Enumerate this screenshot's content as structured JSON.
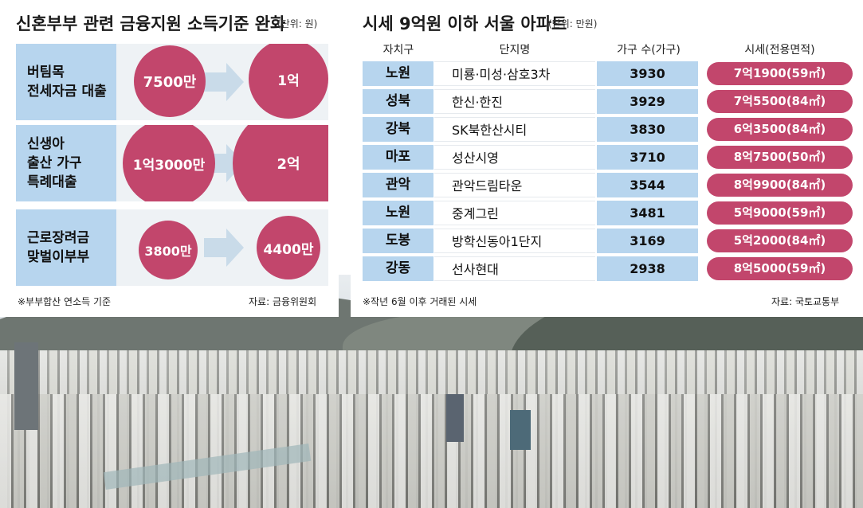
{
  "left": {
    "title": "신혼부부 관련 금융지원 소득기준 완화",
    "unit": "(단위: 원)",
    "rows": [
      {
        "label_lines": [
          "버팀목",
          "전세자금 대출"
        ],
        "before": "7500만",
        "after": "1억"
      },
      {
        "label_lines": [
          "신생아",
          "출산 가구",
          "특례대출"
        ],
        "before": "1억3000만",
        "after": "2억"
      },
      {
        "label_lines": [
          "근로장려금",
          "맞벌이부부"
        ],
        "before": "3800만",
        "after": "4400만"
      }
    ],
    "note": "※부부합산 연소득 기준",
    "source": "자료: 금융위원회"
  },
  "right": {
    "title": "시세 9억원 이하 서울 아파트",
    "unit": "(단위: 만원)",
    "headers": [
      "자치구",
      "단지명",
      "가구 수(가구)",
      "시세(전용면적)"
    ],
    "rows": [
      {
        "district": "노원",
        "name": "미룡·미성·삼호3차",
        "households": "3930",
        "price": "7억1900(59㎡)"
      },
      {
        "district": "성북",
        "name": "한신·한진",
        "households": "3929",
        "price": "7억5500(84㎡)"
      },
      {
        "district": "강북",
        "name": "SK북한산시티",
        "households": "3830",
        "price": "6억3500(84㎡)"
      },
      {
        "district": "마포",
        "name": "성산시영",
        "households": "3710",
        "price": "8억7500(50㎡)"
      },
      {
        "district": "관악",
        "name": "관악드림타운",
        "households": "3544",
        "price": "8억9900(84㎡)"
      },
      {
        "district": "노원",
        "name": "중계그린",
        "households": "3481",
        "price": "5억9000(59㎡)"
      },
      {
        "district": "도봉",
        "name": "방학신동아1단지",
        "households": "3169",
        "price": "5억2000(84㎡)"
      },
      {
        "district": "강동",
        "name": "선사현대",
        "households": "2938",
        "price": "8억5000(59㎡)"
      }
    ],
    "note": "※작년 6월 이후 거래된 시세",
    "source": "자료: 국토교통부"
  },
  "colors": {
    "accent": "#c2466c",
    "label_bg": "#b7d5ee",
    "body_bg": "#eef2f5"
  }
}
